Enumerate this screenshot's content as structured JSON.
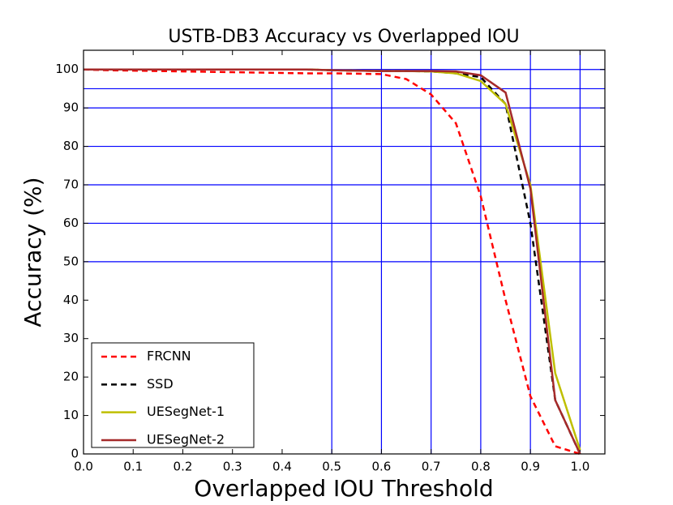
{
  "chart_data": {
    "type": "line",
    "title": "USTB-DB3 Accuracy vs Overlapped IOU",
    "x_label": "Overlapped IOU Threshold",
    "y_label": "Accuracy (%)",
    "x": [
      0,
      0.05,
      0.1,
      0.15,
      0.2,
      0.25,
      0.3,
      0.35,
      0.4,
      0.45,
      0.5,
      0.55,
      0.6,
      0.65,
      0.7,
      0.75,
      0.8,
      0.85,
      0.9,
      0.95,
      1.0
    ],
    "series": [
      {
        "name": "FRCNN",
        "color": "#ff0000",
        "dash": true,
        "values": [
          100,
          99.8,
          99.7,
          99.6,
          99.5,
          99.4,
          99.3,
          99.2,
          99.1,
          99.0,
          99.0,
          98.9,
          98.8,
          97.5,
          93.5,
          86,
          67,
          40,
          15,
          2,
          0
        ]
      },
      {
        "name": "SSD",
        "color": "#000000",
        "dash": true,
        "values": [
          100,
          100,
          100,
          100,
          100,
          100,
          100,
          100,
          100,
          100,
          99.8,
          99.7,
          99.6,
          99.6,
          99.5,
          99,
          98,
          91,
          60,
          14,
          0
        ]
      },
      {
        "name": "UESegNet-1",
        "color": "#bfbf00",
        "dash": false,
        "values": [
          100,
          100,
          100,
          100,
          100,
          100,
          100,
          100,
          100,
          100,
          99.8,
          99.7,
          99.6,
          99.6,
          99.5,
          99,
          97,
          91,
          70,
          21,
          1
        ]
      },
      {
        "name": "UESegNet-2",
        "color": "#a52a2a",
        "dash": false,
        "values": [
          100,
          100,
          100,
          100,
          100,
          100,
          100,
          100,
          100,
          100,
          99.8,
          99.7,
          99.6,
          99.6,
          99.6,
          99.5,
          98.5,
          94,
          69,
          14,
          0
        ]
      }
    ],
    "xlim": [
      0,
      1.05
    ],
    "ylim": [
      0,
      105
    ],
    "xticks": [
      {
        "value": 0,
        "label": "0.0"
      },
      0.1,
      0.2,
      0.3,
      0.4,
      0.5,
      0.6,
      0.7,
      0.8,
      0.9,
      {
        "value": 1.0,
        "label": "1.0"
      }
    ],
    "yticks": [
      0,
      10,
      20,
      30,
      40,
      50,
      60,
      70,
      80,
      90,
      100
    ],
    "xgrid": [
      0.5,
      0.6,
      0.7,
      0.8,
      0.9,
      1.0
    ],
    "ygrid": [
      50,
      60,
      70,
      80,
      90,
      95,
      100
    ],
    "grid_color": "#0000ff",
    "legend": "lower left"
  }
}
